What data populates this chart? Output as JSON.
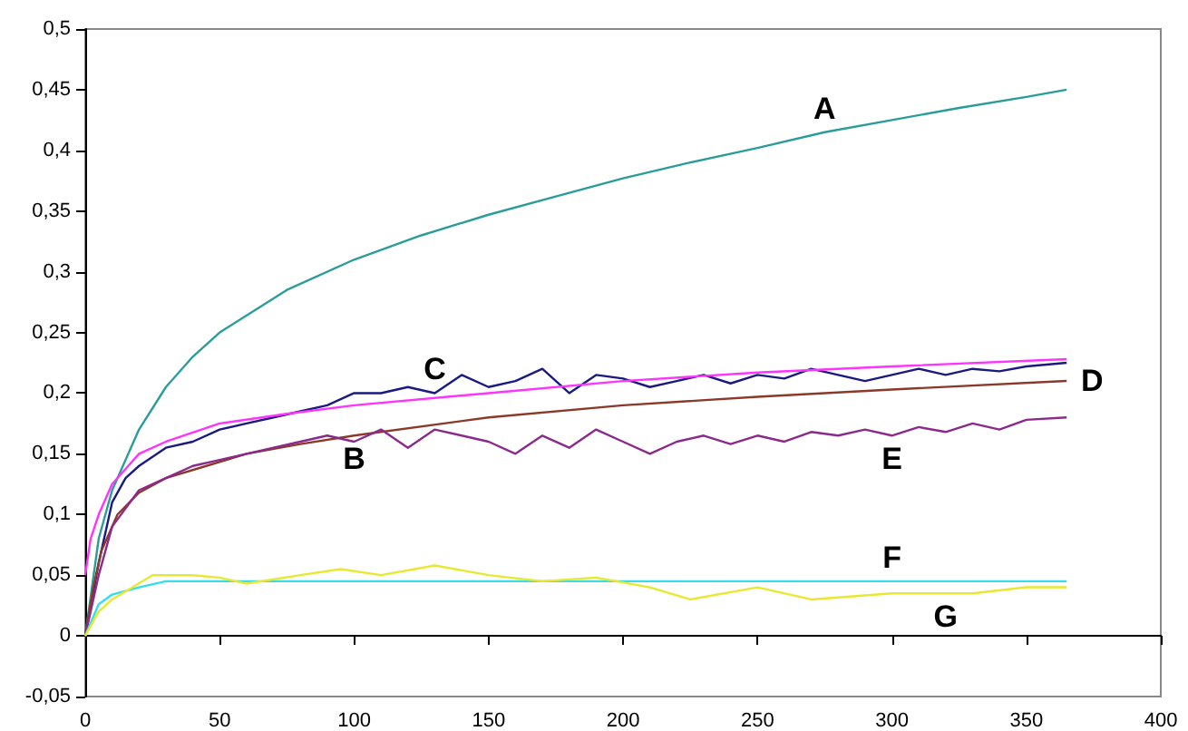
{
  "chart_data": {
    "type": "line",
    "xlim": [
      0,
      400
    ],
    "xticks": [
      0,
      50,
      100,
      150,
      200,
      250,
      300,
      350,
      400
    ],
    "ylim": [
      -0.05,
      0.5
    ],
    "yticks": [
      {
        "value": -0.05,
        "label": "-0,05"
      },
      {
        "value": 0,
        "label": "0"
      },
      {
        "value": 0.05,
        "label": "0,05"
      },
      {
        "value": 0.1,
        "label": "0,1"
      },
      {
        "value": 0.15,
        "label": "0,15"
      },
      {
        "value": 0.2,
        "label": "0,2"
      },
      {
        "value": 0.25,
        "label": "0,25"
      },
      {
        "value": 0.3,
        "label": "0,3"
      },
      {
        "value": 0.35,
        "label": "0,35"
      },
      {
        "value": 0.4,
        "label": "0,4"
      },
      {
        "value": 0.45,
        "label": "0,45"
      },
      {
        "value": 0.5,
        "label": "0,5"
      }
    ],
    "marker": "none",
    "line_style": "solid",
    "series": [
      {
        "color": "#2a9d9a",
        "x": [
          0,
          5,
          10,
          20,
          30,
          40,
          50,
          75,
          100,
          125,
          150,
          175,
          200,
          225,
          250,
          275,
          300,
          325,
          350,
          365
        ],
        "values": [
          0,
          0.08,
          0.12,
          0.17,
          0.205,
          0.23,
          0.25,
          0.285,
          0.31,
          0.33,
          0.347,
          0.362,
          0.377,
          0.39,
          0.402,
          0.415,
          0.425,
          0.435,
          0.444,
          0.45
        ]
      },
      {
        "color": "#1a1a80",
        "x": [
          0,
          5,
          10,
          15,
          20,
          30,
          40,
          50,
          60,
          70,
          80,
          90,
          100,
          110,
          120,
          130,
          140,
          150,
          160,
          170,
          180,
          190,
          200,
          210,
          220,
          230,
          240,
          250,
          260,
          270,
          280,
          290,
          300,
          310,
          320,
          330,
          340,
          350,
          365
        ],
        "values": [
          0,
          0.06,
          0.11,
          0.13,
          0.14,
          0.155,
          0.16,
          0.17,
          0.175,
          0.18,
          0.185,
          0.19,
          0.2,
          0.2,
          0.205,
          0.2,
          0.215,
          0.205,
          0.21,
          0.22,
          0.2,
          0.215,
          0.212,
          0.205,
          0.21,
          0.215,
          0.208,
          0.215,
          0.212,
          0.22,
          0.215,
          0.21,
          0.215,
          0.22,
          0.215,
          0.22,
          0.218,
          0.222,
          0.225
        ]
      },
      {
        "color": "#ff33ff",
        "x": [
          0,
          2,
          5,
          10,
          20,
          30,
          50,
          75,
          100,
          150,
          200,
          250,
          300,
          365
        ],
        "values": [
          0.05,
          0.08,
          0.1,
          0.125,
          0.15,
          0.16,
          0.175,
          0.183,
          0.19,
          0.2,
          0.21,
          0.217,
          0.222,
          0.228
        ]
      },
      {
        "color": "#8b3a2a",
        "x": [
          0,
          3,
          6,
          12,
          20,
          30,
          45,
          60,
          80,
          100,
          150,
          200,
          250,
          300,
          365
        ],
        "values": [
          0,
          0.04,
          0.07,
          0.1,
          0.118,
          0.13,
          0.14,
          0.15,
          0.158,
          0.165,
          0.18,
          0.19,
          0.197,
          0.203,
          0.21
        ]
      },
      {
        "color": "#8b2a8b",
        "x": [
          0,
          5,
          10,
          20,
          30,
          40,
          50,
          60,
          70,
          80,
          90,
          100,
          110,
          120,
          130,
          140,
          150,
          160,
          170,
          180,
          190,
          200,
          210,
          220,
          230,
          240,
          250,
          260,
          270,
          280,
          290,
          300,
          310,
          320,
          330,
          340,
          350,
          365
        ],
        "values": [
          0,
          0.05,
          0.09,
          0.12,
          0.13,
          0.14,
          0.145,
          0.15,
          0.155,
          0.16,
          0.165,
          0.16,
          0.17,
          0.155,
          0.17,
          0.165,
          0.16,
          0.15,
          0.165,
          0.155,
          0.17,
          0.16,
          0.15,
          0.16,
          0.165,
          0.158,
          0.165,
          0.16,
          0.168,
          0.165,
          0.17,
          0.165,
          0.172,
          0.168,
          0.175,
          0.17,
          0.178,
          0.18
        ]
      },
      {
        "color": "#33ddee",
        "x": [
          0,
          5,
          10,
          20,
          30,
          50,
          100,
          200,
          300,
          365
        ],
        "values": [
          0,
          0.026,
          0.034,
          0.04,
          0.045,
          0.045,
          0.045,
          0.045,
          0.045,
          0.045
        ]
      },
      {
        "color": "#e8e830",
        "x": [
          0,
          5,
          10,
          25,
          40,
          50,
          60,
          80,
          95,
          110,
          130,
          150,
          170,
          190,
          210,
          225,
          250,
          270,
          300,
          330,
          350,
          365
        ],
        "values": [
          0,
          0.02,
          0.03,
          0.05,
          0.05,
          0.048,
          0.043,
          0.05,
          0.055,
          0.05,
          0.058,
          0.05,
          0.045,
          0.048,
          0.04,
          0.03,
          0.04,
          0.03,
          0.035,
          0.035,
          0.04,
          0.04
        ]
      }
    ],
    "annotations": [
      {
        "text": "A",
        "x": 275,
        "y": 0.415
      },
      {
        "text": "B",
        "x": 100,
        "y": 0.165
      },
      {
        "text": "C",
        "x": 130,
        "y": 0.2
      },
      {
        "text": "D",
        "x": 365,
        "y": 0.21
      },
      {
        "text": "E",
        "x": 300,
        "y": 0.165
      },
      {
        "text": "F",
        "x": 300,
        "y": 0.045
      },
      {
        "text": "G",
        "x": 320,
        "y": 0.035
      }
    ]
  }
}
